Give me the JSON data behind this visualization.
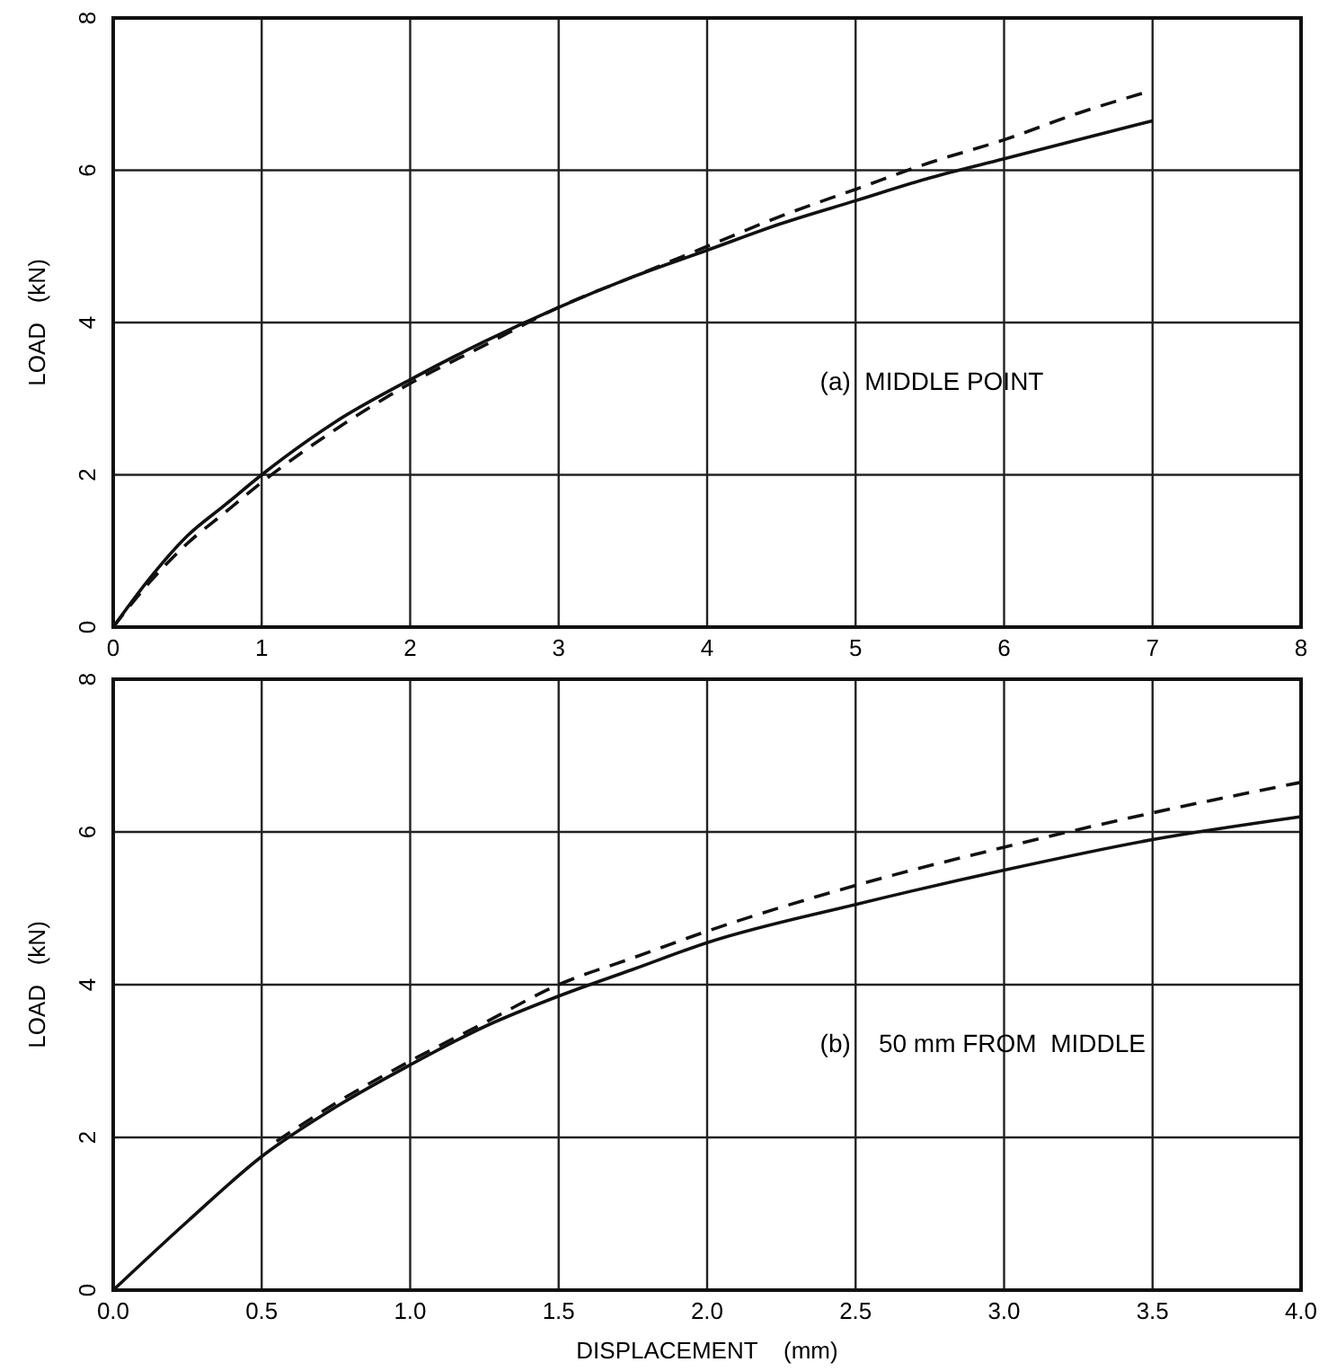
{
  "chart_data": [
    {
      "type": "line",
      "ylabel": "LOAD   (kN)",
      "xlim": [
        0,
        8
      ],
      "xticks": [
        0,
        1,
        2,
        3,
        4,
        5,
        6,
        7,
        8
      ],
      "ylim": [
        0,
        8
      ],
      "yticks": [
        0,
        2,
        4,
        6,
        8
      ],
      "grid": true,
      "annotations": [
        "(a)  MIDDLE POINT"
      ],
      "series": [
        {
          "color": "#111111",
          "line_style": "solid",
          "x": [
            0,
            0.25,
            0.5,
            0.75,
            1,
            1.5,
            2,
            2.5,
            3,
            3.5,
            4,
            4.5,
            5,
            5.5,
            6,
            6.5,
            7
          ],
          "values": [
            0,
            0.65,
            1.2,
            1.6,
            2.0,
            2.7,
            3.25,
            3.75,
            4.2,
            4.6,
            4.95,
            5.3,
            5.6,
            5.9,
            6.15,
            6.4,
            6.65
          ]
        },
        {
          "color": "#111111",
          "line_style": "dashed",
          "x": [
            0,
            0.25,
            0.5,
            0.75,
            1,
            1.5,
            2,
            2.5,
            3,
            3.5,
            4,
            4.5,
            5,
            5.5,
            6,
            6.5,
            7
          ],
          "values": [
            0,
            0.6,
            1.1,
            1.5,
            1.9,
            2.6,
            3.2,
            3.7,
            4.2,
            4.6,
            5.0,
            5.4,
            5.75,
            6.1,
            6.4,
            6.75,
            7.05
          ]
        }
      ]
    },
    {
      "type": "line",
      "xlabel": "DISPLACEMENT    (mm)",
      "ylabel": "LOAD   (kN)",
      "xlim": [
        0,
        4
      ],
      "xticks": [
        {
          "value": 0,
          "label": "0.0"
        },
        0.5,
        {
          "value": 1,
          "label": "1.0"
        },
        1.5,
        {
          "value": 2,
          "label": "2.0"
        },
        2.5,
        {
          "value": 3,
          "label": "3.0"
        },
        3.5,
        {
          "value": 4,
          "label": "4.0"
        }
      ],
      "ylim": [
        0,
        8
      ],
      "yticks": [
        0,
        2,
        4,
        6,
        8
      ],
      "grid": true,
      "annotations": [
        "(b)    50 mm FROM  MIDDLE"
      ],
      "series": [
        {
          "color": "#111111",
          "line_style": "solid",
          "x": [
            0,
            0.25,
            0.5,
            0.75,
            1,
            1.25,
            1.5,
            1.75,
            2,
            2.5,
            3,
            3.5,
            4
          ],
          "values": [
            0,
            0.9,
            1.75,
            2.4,
            2.95,
            3.45,
            3.85,
            4.2,
            4.55,
            5.05,
            5.5,
            5.9,
            6.2
          ]
        },
        {
          "color": "#111111",
          "line_style": "dashed",
          "x": [
            0.55,
            0.75,
            1,
            1.25,
            1.5,
            1.75,
            2,
            2.5,
            3,
            3.5,
            4
          ],
          "values": [
            1.95,
            2.45,
            3.0,
            3.5,
            4.0,
            4.35,
            4.7,
            5.3,
            5.8,
            6.25,
            6.65
          ]
        }
      ]
    }
  ]
}
